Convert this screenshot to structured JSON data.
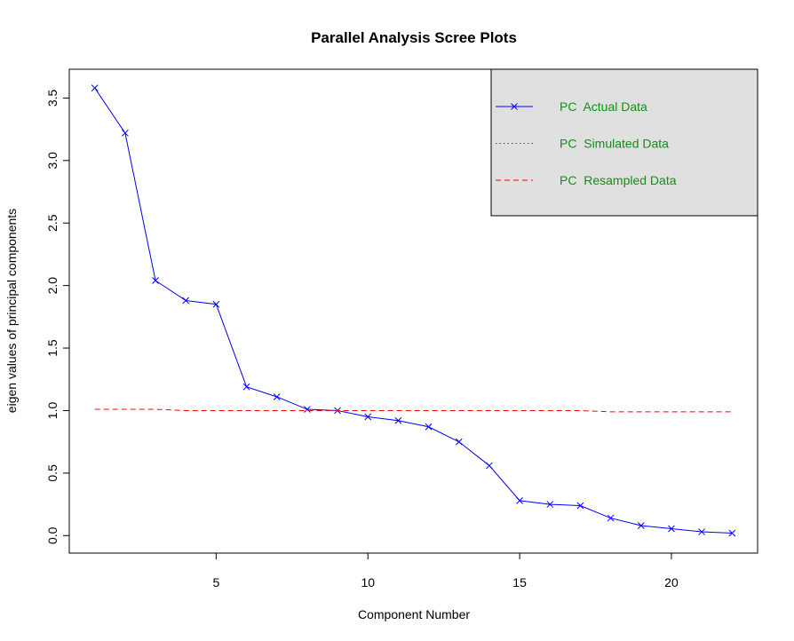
{
  "chart_data": {
    "type": "line",
    "title": "Parallel Analysis Scree Plots",
    "x_label": "Component Number",
    "y_label": "eigen values of principal components",
    "x": [
      1,
      2,
      3,
      4,
      5,
      6,
      7,
      8,
      9,
      10,
      11,
      12,
      13,
      14,
      15,
      16,
      17,
      18,
      19,
      20,
      21,
      22
    ],
    "series": [
      {
        "name": "PC  Actual Data",
        "color": "#0000ff",
        "style": "solid",
        "marker": "x",
        "values": [
          3.58,
          3.22,
          2.04,
          1.88,
          1.85,
          1.19,
          1.11,
          1.01,
          1.0,
          0.95,
          0.92,
          0.87,
          0.75,
          0.56,
          0.28,
          0.25,
          0.24,
          0.14,
          0.08,
          0.055,
          0.03,
          0.02
        ]
      },
      {
        "name": "PC  Simulated Data",
        "color": "#ff0000",
        "style": "dotted"
      },
      {
        "name": "PC  Resampled Data",
        "color": "#ff0000",
        "style": "dashed",
        "values": [
          1.01,
          1.01,
          1.01,
          1.0,
          1.0,
          1.0,
          1.0,
          1.0,
          1.0,
          1.0,
          1.0,
          1.0,
          1.0,
          1.0,
          1.0,
          1.0,
          1.0,
          0.99,
          0.99,
          0.99,
          0.99,
          0.99
        ]
      }
    ],
    "xlim": [
      0.16,
      22.84
    ],
    "xticks": [
      5,
      10,
      15,
      20
    ],
    "ylim": [
      -0.14,
      3.73
    ],
    "yticks": [
      {
        "value": 0,
        "label": "0.0"
      },
      0.5,
      {
        "value": 1,
        "label": "1.0"
      },
      1.5,
      {
        "value": 2,
        "label": "2.0"
      },
      2.5,
      {
        "value": 3,
        "label": "3.0"
      },
      3.5
    ],
    "grid": false,
    "legend_position": "top-right",
    "legend_background": "#e0e0e0",
    "legend_text_color": "#109010"
  }
}
